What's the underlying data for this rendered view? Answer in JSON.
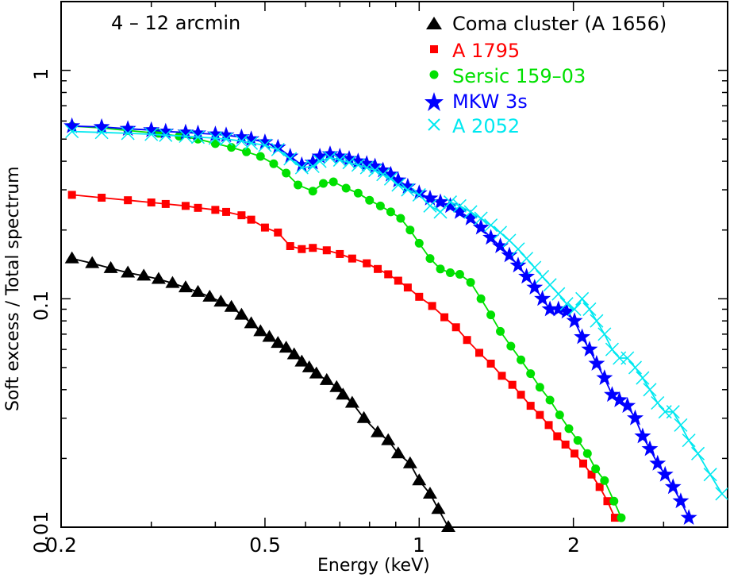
{
  "chart_data": {
    "type": "line",
    "title": "",
    "annotation": "4 – 12 arcmin",
    "xlabel": "Energy (keV)",
    "ylabel": "Soft excess / Total spectrum",
    "xscale": "log",
    "yscale": "log",
    "xlim": [
      0.2,
      4.0
    ],
    "ylim": [
      0.01,
      2.0
    ],
    "xticks": [
      "0.2",
      "0.5",
      "1",
      "2"
    ],
    "yticks": [
      "0.01",
      "0.1",
      "1"
    ],
    "grid": false,
    "legend_position": "upper right",
    "series": [
      {
        "name": "Coma cluster (A 1656)",
        "color": "#000000",
        "marker": "triangle",
        "x": [
          0.21,
          0.23,
          0.25,
          0.27,
          0.29,
          0.31,
          0.33,
          0.35,
          0.37,
          0.39,
          0.41,
          0.43,
          0.45,
          0.47,
          0.49,
          0.51,
          0.53,
          0.55,
          0.57,
          0.59,
          0.61,
          0.63,
          0.66,
          0.69,
          0.71,
          0.74,
          0.78,
          0.83,
          0.87,
          0.91,
          0.96,
          1.0,
          1.05,
          1.09,
          1.14
        ],
        "y": [
          0.15,
          0.143,
          0.136,
          0.13,
          0.126,
          0.122,
          0.117,
          0.112,
          0.107,
          0.102,
          0.097,
          0.092,
          0.085,
          0.078,
          0.072,
          0.068,
          0.064,
          0.061,
          0.057,
          0.053,
          0.05,
          0.047,
          0.044,
          0.041,
          0.038,
          0.035,
          0.03,
          0.026,
          0.024,
          0.021,
          0.019,
          0.016,
          0.014,
          0.012,
          0.01
        ]
      },
      {
        "name": "A 1795",
        "color": "#ff0000",
        "marker": "square",
        "x": [
          0.21,
          0.24,
          0.27,
          0.3,
          0.32,
          0.35,
          0.37,
          0.4,
          0.42,
          0.45,
          0.47,
          0.5,
          0.53,
          0.56,
          0.59,
          0.62,
          0.66,
          0.7,
          0.74,
          0.79,
          0.83,
          0.87,
          0.91,
          0.95,
          1.0,
          1.06,
          1.12,
          1.18,
          1.24,
          1.31,
          1.38,
          1.45,
          1.52,
          1.58,
          1.65,
          1.72,
          1.79,
          1.86,
          1.93,
          2.01,
          2.09,
          2.17,
          2.25,
          2.33,
          2.41
        ],
        "y": [
          0.285,
          0.277,
          0.27,
          0.264,
          0.26,
          0.255,
          0.25,
          0.245,
          0.24,
          0.232,
          0.222,
          0.205,
          0.195,
          0.17,
          0.165,
          0.167,
          0.163,
          0.157,
          0.15,
          0.143,
          0.135,
          0.128,
          0.12,
          0.112,
          0.102,
          0.093,
          0.083,
          0.075,
          0.066,
          0.058,
          0.052,
          0.046,
          0.042,
          0.038,
          0.034,
          0.031,
          0.028,
          0.025,
          0.023,
          0.021,
          0.019,
          0.017,
          0.015,
          0.013,
          0.011
        ]
      },
      {
        "name": "Sersic 159-03",
        "color": "#00e000",
        "marker": "circle",
        "x": [
          0.21,
          0.24,
          0.27,
          0.31,
          0.34,
          0.37,
          0.4,
          0.43,
          0.46,
          0.49,
          0.52,
          0.55,
          0.58,
          0.62,
          0.65,
          0.68,
          0.72,
          0.76,
          0.8,
          0.84,
          0.88,
          0.92,
          0.96,
          1.0,
          1.05,
          1.1,
          1.15,
          1.2,
          1.26,
          1.32,
          1.38,
          1.44,
          1.51,
          1.58,
          1.65,
          1.72,
          1.8,
          1.88,
          1.96,
          2.04,
          2.13,
          2.21,
          2.3,
          2.4,
          2.48
        ],
        "y": [
          0.57,
          0.56,
          0.545,
          0.53,
          0.515,
          0.5,
          0.478,
          0.46,
          0.44,
          0.42,
          0.39,
          0.355,
          0.315,
          0.296,
          0.32,
          0.325,
          0.305,
          0.29,
          0.27,
          0.255,
          0.24,
          0.225,
          0.2,
          0.175,
          0.15,
          0.135,
          0.13,
          0.128,
          0.118,
          0.1,
          0.085,
          0.072,
          0.062,
          0.054,
          0.047,
          0.041,
          0.036,
          0.031,
          0.027,
          0.024,
          0.021,
          0.018,
          0.016,
          0.013,
          0.011
        ]
      },
      {
        "name": "MKW 3s",
        "color": "#0000ff",
        "marker": "star",
        "x": [
          0.21,
          0.24,
          0.27,
          0.3,
          0.32,
          0.35,
          0.37,
          0.4,
          0.42,
          0.45,
          0.47,
          0.5,
          0.53,
          0.56,
          0.59,
          0.62,
          0.64,
          0.67,
          0.7,
          0.73,
          0.76,
          0.79,
          0.82,
          0.85,
          0.88,
          0.91,
          0.95,
          1.0,
          1.05,
          1.1,
          1.15,
          1.2,
          1.26,
          1.32,
          1.38,
          1.44,
          1.5,
          1.56,
          1.62,
          1.68,
          1.74,
          1.8,
          1.87,
          1.94,
          2.01,
          2.08,
          2.15,
          2.22,
          2.3,
          2.38,
          2.46,
          2.55,
          2.64,
          2.73,
          2.82,
          2.92,
          3.02,
          3.13,
          3.24,
          3.36
        ],
        "y": [
          0.57,
          0.565,
          0.555,
          0.548,
          0.54,
          0.535,
          0.53,
          0.525,
          0.52,
          0.51,
          0.5,
          0.485,
          0.46,
          0.42,
          0.385,
          0.395,
          0.42,
          0.43,
          0.42,
          0.41,
          0.4,
          0.39,
          0.38,
          0.365,
          0.35,
          0.33,
          0.31,
          0.29,
          0.275,
          0.265,
          0.255,
          0.24,
          0.225,
          0.205,
          0.185,
          0.17,
          0.155,
          0.14,
          0.125,
          0.112,
          0.1,
          0.09,
          0.09,
          0.088,
          0.08,
          0.068,
          0.06,
          0.052,
          0.045,
          0.038,
          0.036,
          0.034,
          0.03,
          0.025,
          0.022,
          0.019,
          0.017,
          0.015,
          0.013,
          0.011
        ]
      },
      {
        "name": "A 2052",
        "color": "#00e8f0",
        "marker": "cross",
        "x": [
          0.21,
          0.24,
          0.27,
          0.3,
          0.32,
          0.35,
          0.37,
          0.4,
          0.42,
          0.45,
          0.47,
          0.5,
          0.53,
          0.56,
          0.59,
          0.62,
          0.64,
          0.67,
          0.7,
          0.73,
          0.76,
          0.79,
          0.82,
          0.85,
          0.88,
          0.91,
          0.95,
          1.0,
          1.05,
          1.1,
          1.15,
          1.2,
          1.26,
          1.32,
          1.38,
          1.44,
          1.5,
          1.56,
          1.62,
          1.68,
          1.74,
          1.8,
          1.87,
          1.94,
          2.01,
          2.08,
          2.15,
          2.22,
          2.3,
          2.38,
          2.46,
          2.55,
          2.64,
          2.73,
          2.82,
          2.92,
          3.02,
          3.13,
          3.24,
          3.36,
          3.5,
          3.7,
          3.9
        ],
        "y": [
          0.54,
          0.535,
          0.53,
          0.525,
          0.52,
          0.515,
          0.51,
          0.505,
          0.5,
          0.49,
          0.48,
          0.47,
          0.45,
          0.41,
          0.375,
          0.38,
          0.4,
          0.415,
          0.405,
          0.395,
          0.385,
          0.375,
          0.365,
          0.35,
          0.335,
          0.315,
          0.3,
          0.285,
          0.255,
          0.24,
          0.265,
          0.255,
          0.24,
          0.225,
          0.21,
          0.195,
          0.18,
          0.165,
          0.15,
          0.137,
          0.125,
          0.115,
          0.105,
          0.095,
          0.09,
          0.1,
          0.09,
          0.08,
          0.07,
          0.06,
          0.055,
          0.055,
          0.05,
          0.045,
          0.04,
          0.035,
          0.032,
          0.032,
          0.028,
          0.024,
          0.021,
          0.017,
          0.014
        ]
      }
    ]
  },
  "labels": {
    "annotation": "4 – 12 arcmin",
    "xlabel": "Energy (keV)",
    "ylabel": "Soft excess / Total spectrum",
    "xticks": [
      "0.2",
      "0.5",
      "1",
      "2"
    ],
    "yticks": [
      "0.01",
      "0.1",
      "1"
    ]
  },
  "legend": [
    {
      "label": "Coma cluster (A 1656)",
      "color": "#000000",
      "marker": "triangle-icon"
    },
    {
      "label": "A 1795",
      "color": "#ff0000",
      "marker": "square-icon"
    },
    {
      "label": "Sersic 159–03",
      "color": "#00e000",
      "marker": "circle-icon"
    },
    {
      "label": "MKW 3s",
      "color": "#0000ff",
      "marker": "star-icon"
    },
    {
      "label": "A 2052",
      "color": "#00e8f0",
      "marker": "cross-icon"
    }
  ]
}
